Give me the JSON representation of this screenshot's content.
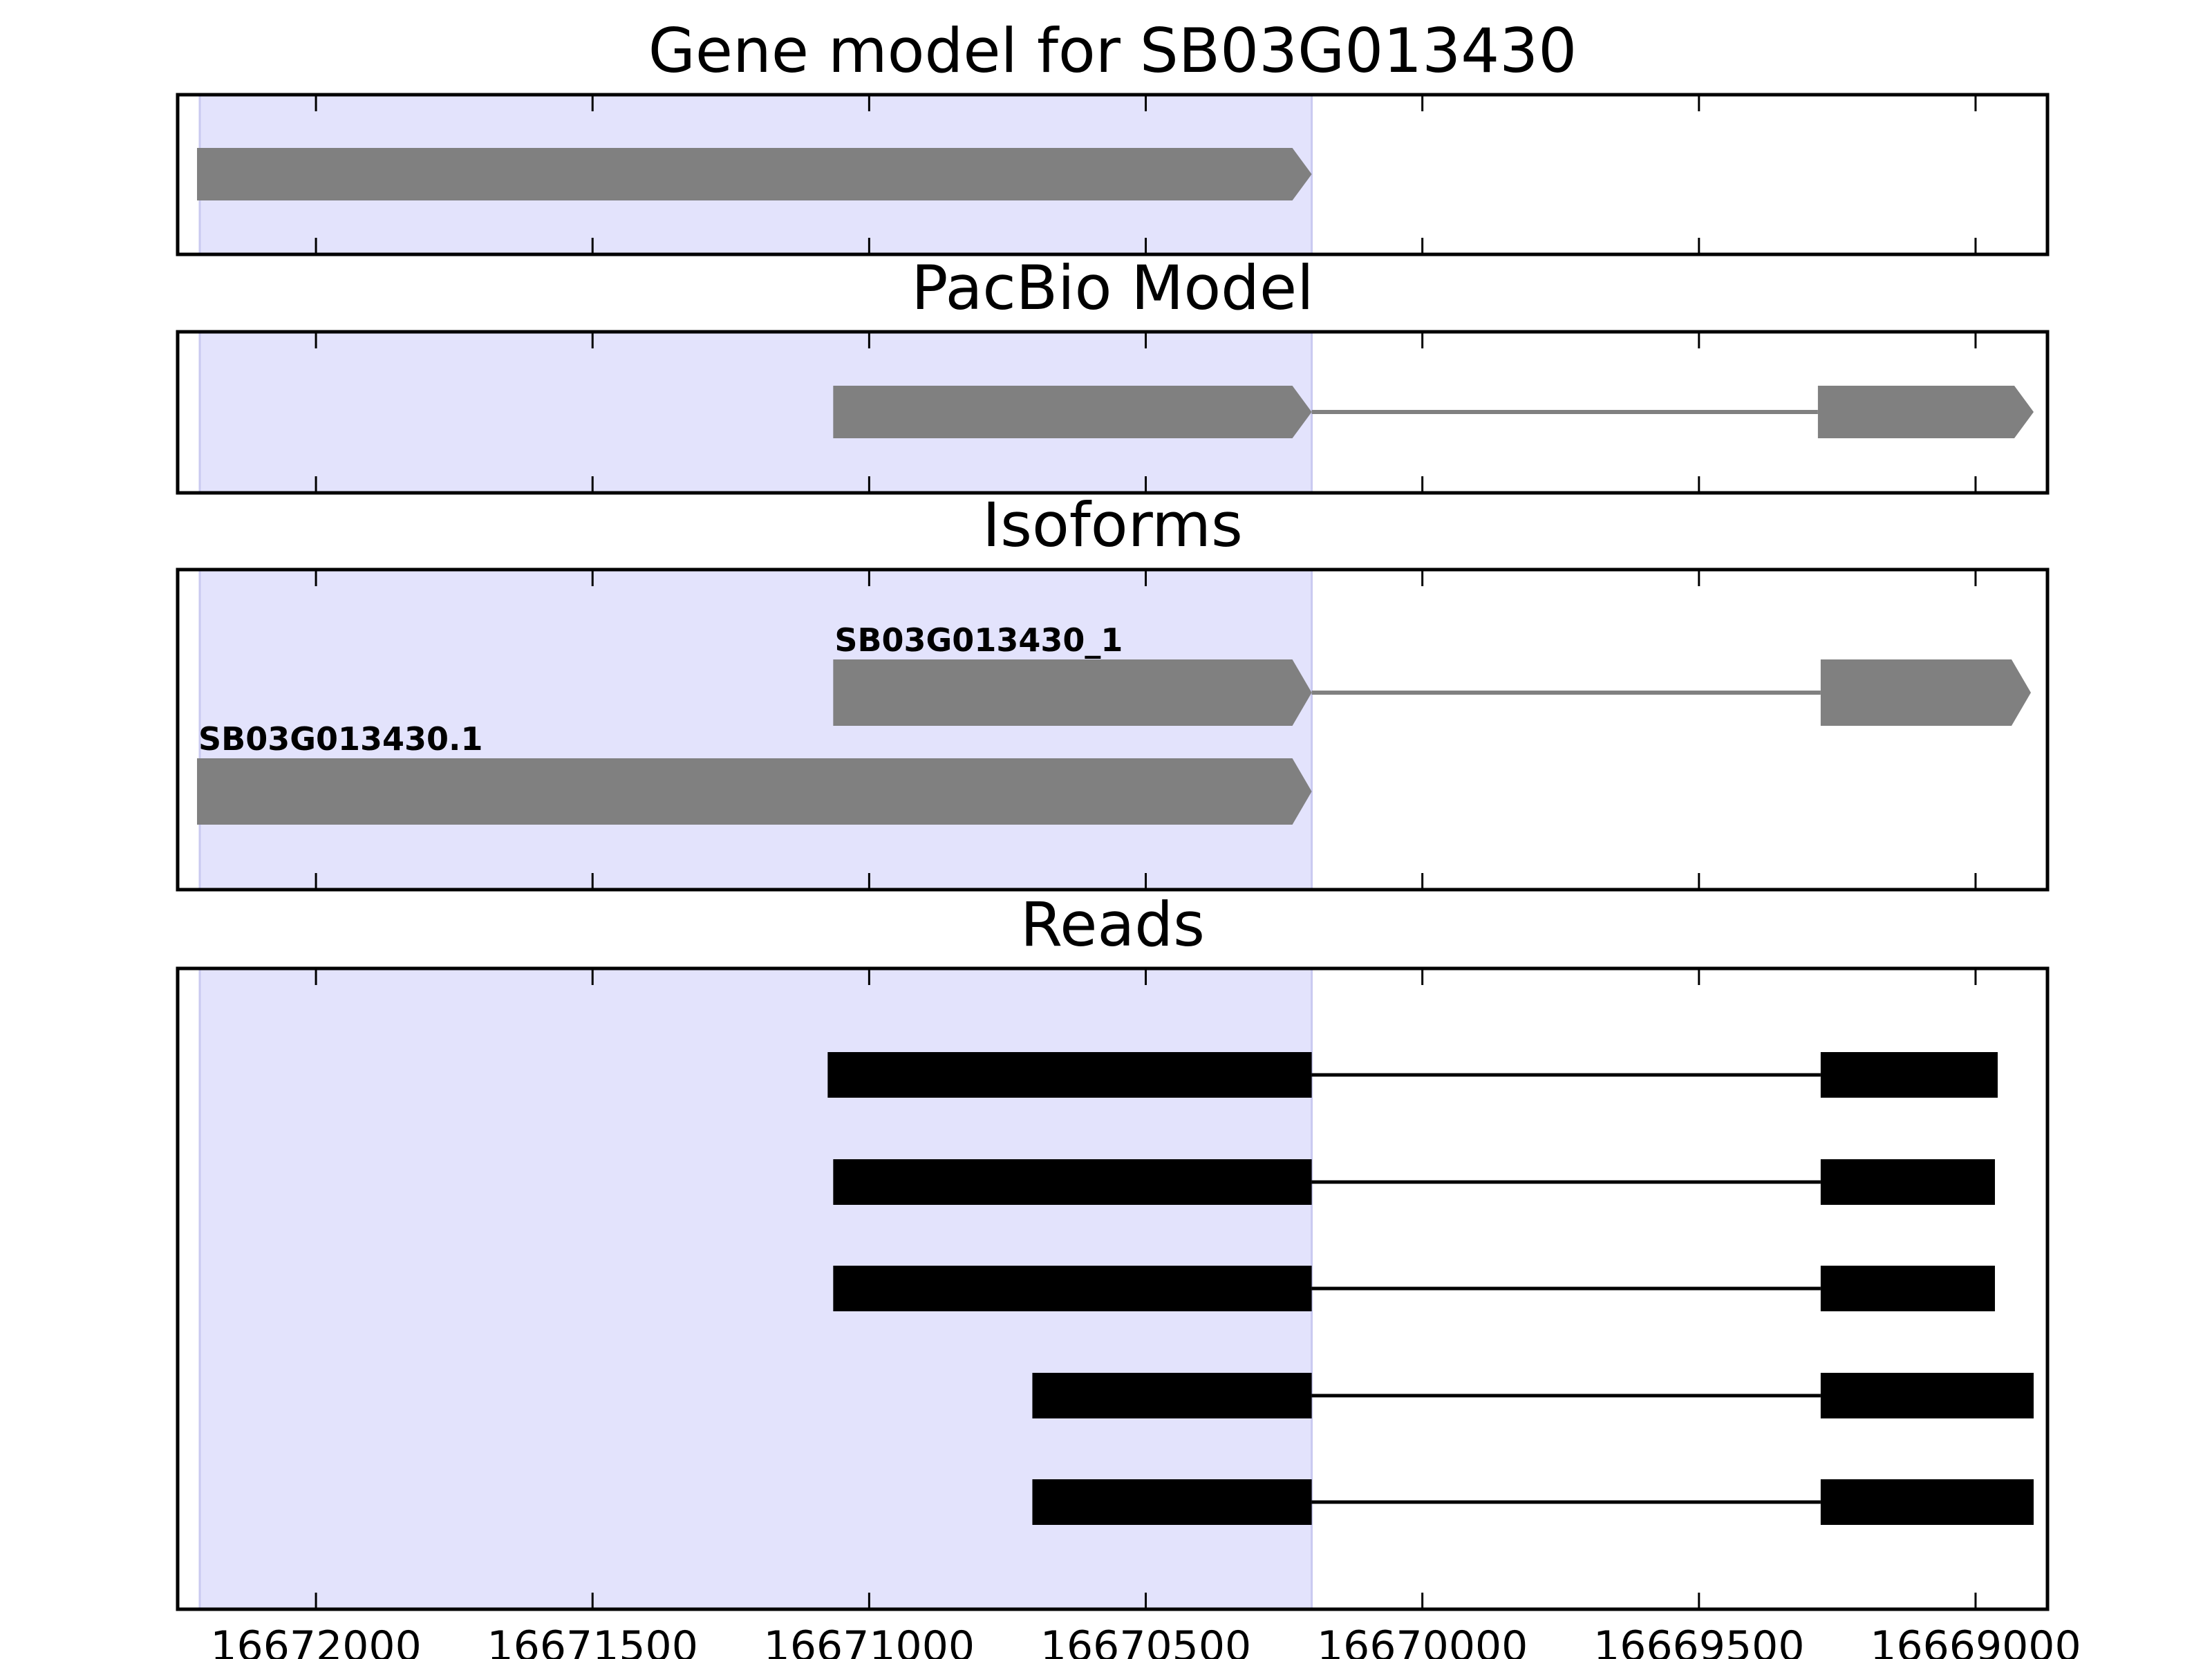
{
  "chart_data": {
    "type": "gene-track",
    "x_axis": {
      "ticks": [
        16672000,
        16671500,
        16671000,
        16670500,
        16670000,
        16669500,
        16669000
      ],
      "tick_labels": [
        "16672000",
        "16671500",
        "16671000",
        "16670500",
        "16670000",
        "16669500",
        "16669000"
      ],
      "xlim": [
        16672250,
        16668870
      ],
      "direction": "descending"
    },
    "highlight_region": {
      "start": 16672210,
      "end": 16670200,
      "color": "#e3e3fc"
    },
    "colors": {
      "model": "#808080",
      "read": "#000000",
      "frame": "#000000",
      "background": "#ffffff"
    },
    "panels": [
      {
        "title": "Gene model for SB03G013430",
        "features": [
          {
            "label": "",
            "exons": [
              [
                16672215,
                16670200
              ]
            ]
          }
        ]
      },
      {
        "title": "PacBio Model",
        "features": [
          {
            "label": "",
            "exons": [
              [
                16671065,
                16670200
              ],
              [
                16669285,
                16668895
              ]
            ]
          }
        ]
      },
      {
        "title": "Isoforms",
        "features": [
          {
            "label": "SB03G013430_1",
            "exons": [
              [
                16671065,
                16670200
              ],
              [
                16669280,
                16668900
              ]
            ]
          },
          {
            "label": "SB03G013430.1",
            "exons": [
              [
                16672215,
                16670200
              ]
            ]
          }
        ]
      },
      {
        "title": "Reads",
        "features": [
          {
            "label": "",
            "exons": [
              [
                16671075,
                16670200
              ],
              [
                16669280,
                16668960
              ]
            ]
          },
          {
            "label": "",
            "exons": [
              [
                16671065,
                16670200
              ],
              [
                16669280,
                16668965
              ]
            ]
          },
          {
            "label": "",
            "exons": [
              [
                16671065,
                16670200
              ],
              [
                16669280,
                16668965
              ]
            ]
          },
          {
            "label": "",
            "exons": [
              [
                16670705,
                16670200
              ],
              [
                16669280,
                16668895
              ]
            ]
          },
          {
            "label": "",
            "exons": [
              [
                16670705,
                16670200
              ],
              [
                16669280,
                16668895
              ]
            ]
          }
        ]
      }
    ]
  }
}
